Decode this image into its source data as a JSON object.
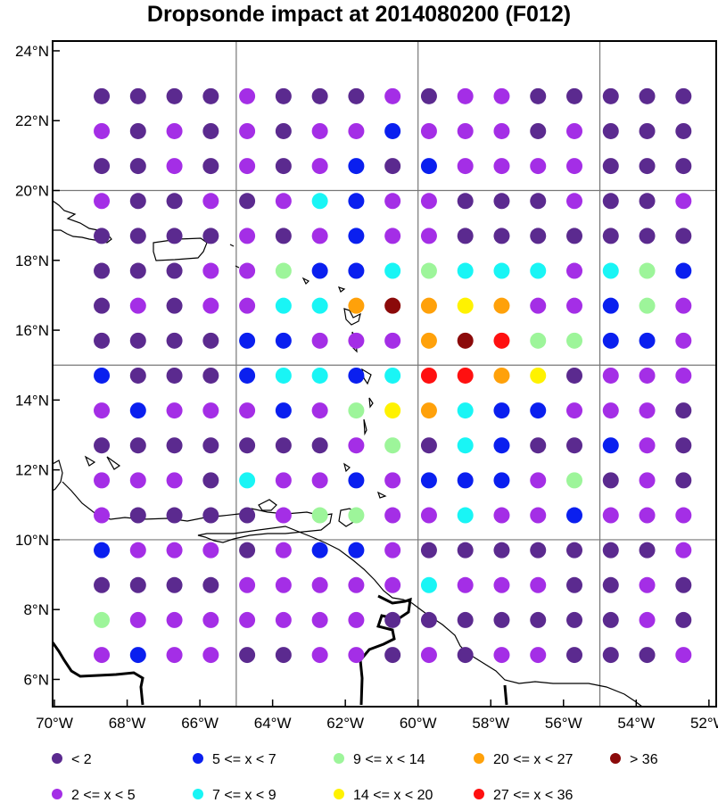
{
  "title": "Dropsonde impact at 2014080200 (F012)",
  "lon_range": [
    -70,
    -52
  ],
  "lat_range": [
    5,
    24
  ],
  "lon_ticks": [
    {
      "value": -70,
      "label": "70°W"
    },
    {
      "value": -68,
      "label": "68°W"
    },
    {
      "value": -66,
      "label": "66°W"
    },
    {
      "value": -64,
      "label": "64°W"
    },
    {
      "value": -62,
      "label": "62°W"
    },
    {
      "value": -60,
      "label": "60°W"
    },
    {
      "value": -58,
      "label": "58°W"
    },
    {
      "value": -56,
      "label": "56°W"
    },
    {
      "value": -54,
      "label": "54°W"
    },
    {
      "value": -52,
      "label": "52°W"
    }
  ],
  "lat_ticks": [
    {
      "value": 6,
      "label": "6°N"
    },
    {
      "value": 8,
      "label": "8°N"
    },
    {
      "value": 10,
      "label": "10°N"
    },
    {
      "value": 12,
      "label": "12°N"
    },
    {
      "value": 14,
      "label": "14°N"
    },
    {
      "value": 16,
      "label": "16°N"
    },
    {
      "value": 18,
      "label": "18°N"
    },
    {
      "value": 20,
      "label": "20°N"
    },
    {
      "value": 22,
      "label": "22°N"
    },
    {
      "value": 24,
      "label": "24°N"
    }
  ],
  "grid_lons": [
    -65,
    -60,
    -55
  ],
  "grid_lats": [
    10,
    15,
    20
  ],
  "legend": [
    {
      "key": "a",
      "label": "<  2",
      "color": "#5b2a8f"
    },
    {
      "key": "b",
      "label": "2 <= x <  5",
      "color": "#a42ee6"
    },
    {
      "key": "c",
      "label": "5 <= x <  7",
      "color": "#0a1fef"
    },
    {
      "key": "d",
      "label": "7 <= x <  9",
      "color": "#19f5f5"
    },
    {
      "key": "e",
      "label": "9 <= x < 14",
      "color": "#9df59a"
    },
    {
      "key": "f",
      "label": "14 <= x < 20",
      "color": "#fff200"
    },
    {
      "key": "g",
      "label": "20 <= x < 27",
      "color": "#ffa10a"
    },
    {
      "key": "h",
      "label": "27 <= x < 36",
      "color": "#ff1010"
    },
    {
      "key": "i",
      "label": "> 36",
      "color": "#8b0a0a"
    }
  ],
  "chart_data": {
    "type": "scatter",
    "title": "Dropsonde impact at 2014080200 (F012)",
    "grid_lons": [
      -68.7,
      -67.7,
      -66.7,
      -65.7,
      -64.7,
      -63.7,
      -62.7,
      -61.7,
      -60.7,
      -59.7,
      -58.7,
      -57.7,
      -56.7,
      -55.7,
      -54.7,
      -53.7,
      -52.7
    ],
    "grid_lats": [
      22.7,
      21.7,
      20.7,
      19.7,
      18.7,
      17.7,
      16.7,
      15.7,
      14.7,
      13.7,
      12.7,
      11.7,
      10.7,
      9.7,
      8.7,
      7.7,
      6.7
    ],
    "category_rows": [
      "aaaabaaababbaaaaa",
      "babababbcbbbabaaa",
      "aabababcacbbbbaaa",
      "baababdcbbaaabaab",
      "aaaababcbbaaaaaaa",
      "aaabbeccdedddbdec",
      "ababbddgigfgbbceb",
      "aaaaccbbbgiheeccb",
      "caaacddcdhhgfabbb",
      "bcbbbcbefgdccbbba",
      "aaaaaaabeadcaacba",
      "bbbadbbcbcccbeaba",
      "baaaabeebbdbbcbbb",
      "cbbbabccbaaaaaaab",
      "aaaabbbbbdbbbaaba",
      "ebbbbbbbaaaaaaaba",
      "bcbbaabbababbaaab"
    ]
  }
}
